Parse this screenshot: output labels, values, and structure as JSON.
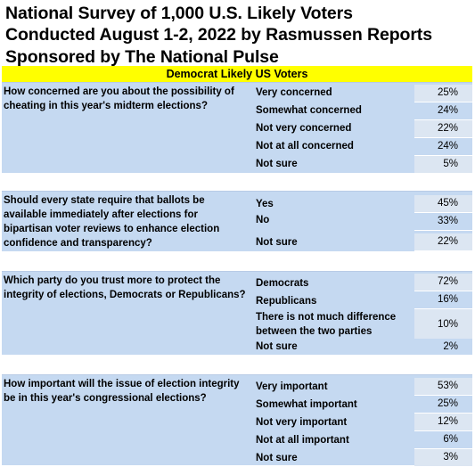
{
  "title": {
    "line1": "National Survey of 1,000 U.S. Likely Voters",
    "line2": "Conducted August 1-2, 2022 by Rasmussen Reports",
    "line3": "Sponsored by The National Pulse"
  },
  "banner": "Democrat Likely US Voters",
  "questions": [
    {
      "text": "How concerned are you about the possibility of cheating in this year's midterm elections?",
      "answers": [
        {
          "label": "Very concerned",
          "value": "25%"
        },
        {
          "label": "Somewhat concerned",
          "value": "24%"
        },
        {
          "label": "Not very concerned",
          "value": "22%"
        },
        {
          "label": "Not at all concerned",
          "value": "24%"
        },
        {
          "label": "Not sure",
          "value": "5%"
        }
      ]
    },
    {
      "text": "Should every state require that ballots be available immediately after elections for bipartisan voter reviews to enhance election confidence and transparency?",
      "answers": [
        {
          "label": "Yes",
          "value": "45%"
        },
        {
          "label": "No",
          "value": "33%"
        },
        {
          "label": "Not sure",
          "value": "22%"
        }
      ]
    },
    {
      "text": "Which party do you trust more to protect the integrity of elections, Democrats or Republicans?",
      "answers": [
        {
          "label": "Democrats",
          "value": "72%"
        },
        {
          "label": "Republicans",
          "value": "16%"
        },
        {
          "label": "There is not much difference between the two parties",
          "value": "10%"
        },
        {
          "label": "Not sure",
          "value": "2%"
        }
      ]
    },
    {
      "text": "How important will the issue of election integrity be in this year's congressional elections?",
      "answers": [
        {
          "label": "Very important",
          "value": "53%"
        },
        {
          "label": "Somewhat important",
          "value": "25%"
        },
        {
          "label": "Not very important",
          "value": "12%"
        },
        {
          "label": "Not at all important",
          "value": "6%"
        },
        {
          "label": "Not sure",
          "value": "3%"
        }
      ]
    }
  ]
}
